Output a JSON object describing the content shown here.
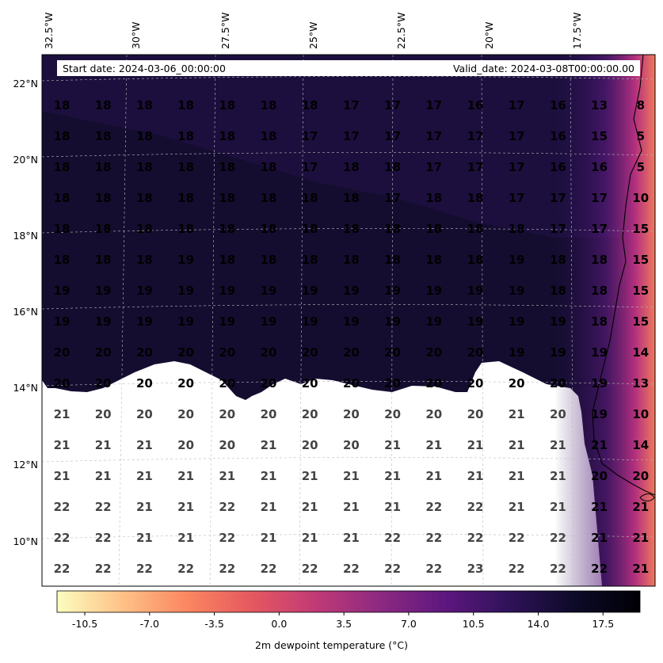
{
  "header": {
    "start_date": "Start date: 2024-03-06_00:00:00",
    "valid_date": "Valid_date: 2024-03-08T00:00:00.00"
  },
  "lon_labels": [
    "32.5°W",
    "30°W",
    "27.5°W",
    "25°W",
    "22.5°W",
    "20°W",
    "17.5°W"
  ],
  "lat_labels": [
    "22°N",
    "20°N",
    "18°N",
    "16°N",
    "14°N",
    "12°N",
    "10°N"
  ],
  "grid_values": [
    [
      "18",
      "18",
      "18",
      "18",
      "18",
      "18",
      "18",
      "17",
      "17",
      "17",
      "16",
      "17",
      "16",
      "13",
      "8"
    ],
    [
      "18",
      "18",
      "18",
      "18",
      "18",
      "18",
      "17",
      "17",
      "17",
      "17",
      "17",
      "17",
      "16",
      "15",
      "5"
    ],
    [
      "18",
      "18",
      "18",
      "18",
      "18",
      "18",
      "17",
      "18",
      "18",
      "17",
      "17",
      "17",
      "16",
      "16",
      "5"
    ],
    [
      "18",
      "18",
      "18",
      "18",
      "18",
      "18",
      "18",
      "18",
      "17",
      "18",
      "18",
      "17",
      "17",
      "17",
      "10"
    ],
    [
      "18",
      "18",
      "18",
      "18",
      "18",
      "18",
      "18",
      "18",
      "18",
      "18",
      "18",
      "18",
      "17",
      "17",
      "15"
    ],
    [
      "18",
      "18",
      "18",
      "19",
      "18",
      "18",
      "18",
      "18",
      "18",
      "18",
      "18",
      "19",
      "18",
      "18",
      "15"
    ],
    [
      "19",
      "19",
      "19",
      "19",
      "19",
      "19",
      "19",
      "19",
      "19",
      "19",
      "19",
      "19",
      "18",
      "18",
      "15"
    ],
    [
      "19",
      "19",
      "19",
      "19",
      "19",
      "19",
      "19",
      "19",
      "19",
      "19",
      "19",
      "19",
      "19",
      "18",
      "15"
    ],
    [
      "20",
      "20",
      "20",
      "20",
      "20",
      "20",
      "20",
      "20",
      "20",
      "20",
      "20",
      "19",
      "19",
      "19",
      "14"
    ],
    [
      "20",
      "20",
      "20",
      "20",
      "20",
      "20",
      "20",
      "20",
      "20",
      "20",
      "20",
      "20",
      "20",
      "19",
      "13"
    ],
    [
      "21",
      "20",
      "20",
      "20",
      "20",
      "20",
      "20",
      "20",
      "20",
      "20",
      "20",
      "21",
      "20",
      "19",
      "10"
    ],
    [
      "21",
      "21",
      "21",
      "20",
      "20",
      "21",
      "20",
      "20",
      "21",
      "21",
      "21",
      "21",
      "21",
      "21",
      "14"
    ],
    [
      "21",
      "21",
      "21",
      "21",
      "21",
      "21",
      "21",
      "21",
      "21",
      "21",
      "21",
      "21",
      "21",
      "20",
      "20"
    ],
    [
      "22",
      "22",
      "21",
      "21",
      "22",
      "21",
      "21",
      "21",
      "21",
      "22",
      "22",
      "21",
      "21",
      "21",
      "21"
    ],
    [
      "22",
      "22",
      "21",
      "21",
      "22",
      "21",
      "21",
      "21",
      "22",
      "22",
      "22",
      "22",
      "22",
      "21",
      "21"
    ],
    [
      "22",
      "22",
      "22",
      "22",
      "22",
      "22",
      "22",
      "22",
      "22",
      "22",
      "23",
      "22",
      "22",
      "22",
      "21"
    ]
  ],
  "colorbar": {
    "ticks": [
      "-10.5",
      "-7.0",
      "-3.5",
      "0.0",
      "3.5",
      "7.0",
      "10.5",
      "14.0",
      "17.5"
    ],
    "label": "2m dewpoint temperature (°C)",
    "min": -12,
    "max": 19.5,
    "stops": [
      "#fcfdbf",
      "#fec287",
      "#fb8761",
      "#e5585f",
      "#c03a76",
      "#8c2981",
      "#5d177f",
      "#2e1258",
      "#0d0a28",
      "#000004"
    ]
  }
}
